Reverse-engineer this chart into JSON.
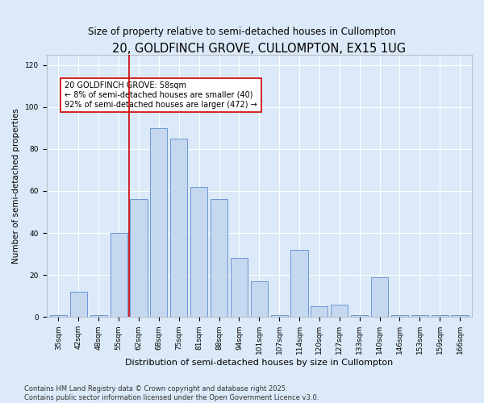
{
  "title": "20, GOLDFINCH GROVE, CULLOMPTON, EX15 1UG",
  "subtitle": "Size of property relative to semi-detached houses in Cullompton",
  "xlabel": "Distribution of semi-detached houses by size in Cullompton",
  "ylabel": "Number of semi-detached properties",
  "categories": [
    "35sqm",
    "42sqm",
    "48sqm",
    "55sqm",
    "62sqm",
    "68sqm",
    "75sqm",
    "81sqm",
    "88sqm",
    "94sqm",
    "101sqm",
    "107sqm",
    "114sqm",
    "120sqm",
    "127sqm",
    "133sqm",
    "140sqm",
    "146sqm",
    "153sqm",
    "159sqm",
    "166sqm"
  ],
  "values": [
    1,
    12,
    1,
    40,
    56,
    90,
    85,
    62,
    56,
    28,
    17,
    1,
    32,
    5,
    6,
    1,
    19,
    1,
    1,
    1,
    1
  ],
  "bar_color": "#c5d8f0",
  "bar_edge_color": "#5b8bd0",
  "vline_x_index": 4,
  "vline_color": "#cc0000",
  "annotation_text": "20 GOLDFINCH GROVE: 58sqm\n← 8% of semi-detached houses are smaller (40)\n92% of semi-detached houses are larger (472) →",
  "annotation_box_color": "#ffffff",
  "annotation_box_edge_color": "#cc0000",
  "ylim": [
    0,
    125
  ],
  "yticks": [
    0,
    20,
    40,
    60,
    80,
    100,
    120
  ],
  "bg_color": "#dce9f8",
  "plot_bg_color": "#dce9f8",
  "footer_text": "Contains HM Land Registry data © Crown copyright and database right 2025.\nContains public sector information licensed under the Open Government Licence v3.0.",
  "title_fontsize": 10.5,
  "subtitle_fontsize": 8.5,
  "xlabel_fontsize": 8,
  "ylabel_fontsize": 7.5,
  "tick_fontsize": 6.5,
  "annotation_fontsize": 7,
  "footer_fontsize": 6
}
